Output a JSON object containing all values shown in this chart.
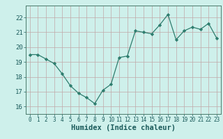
{
  "x": [
    0,
    1,
    2,
    3,
    4,
    5,
    6,
    7,
    8,
    9,
    10,
    11,
    12,
    13,
    14,
    15,
    16,
    17,
    18,
    19,
    20,
    21,
    22,
    23
  ],
  "y": [
    19.5,
    19.5,
    19.2,
    18.9,
    18.2,
    17.4,
    16.9,
    16.6,
    16.2,
    17.1,
    17.5,
    19.3,
    19.4,
    21.1,
    21.0,
    20.9,
    21.5,
    22.2,
    20.5,
    21.1,
    21.35,
    21.2,
    21.6,
    20.6
  ],
  "line_color": "#2e7d6e",
  "marker": "D",
  "marker_size": 2.2,
  "bg_color": "#cef0eb",
  "grid_color": "#c0a8a8",
  "xlabel": "Humidex (Indice chaleur)",
  "xlabel_fontsize": 7.5,
  "tick_fontsize": 6.5,
  "ylim": [
    15.5,
    22.8
  ],
  "xlim": [
    -0.5,
    23.5
  ],
  "yticks": [
    16,
    17,
    18,
    19,
    20,
    21,
    22
  ],
  "xticks": [
    0,
    1,
    2,
    3,
    4,
    5,
    6,
    7,
    8,
    9,
    10,
    11,
    12,
    13,
    14,
    15,
    16,
    17,
    18,
    19,
    20,
    21,
    22,
    23
  ]
}
